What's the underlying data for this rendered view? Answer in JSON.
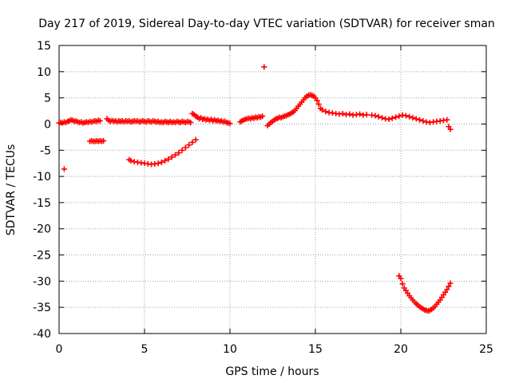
{
  "chart_data": {
    "type": "scatter",
    "title": "Day 217 of 2019, Sidereal Day-to-day VTEC variation (SDTVAR) for receiver sman",
    "xlabel": "GPS time / hours",
    "ylabel": "SDTVAR / TECUs",
    "xlim": [
      0,
      25
    ],
    "ylim": [
      -40,
      15
    ],
    "xticks": [
      0,
      5,
      10,
      15,
      20,
      25
    ],
    "yticks": [
      15,
      10,
      5,
      0,
      -5,
      -10,
      -15,
      -20,
      -25,
      -30,
      -35,
      -40
    ],
    "grid": true,
    "marker": "+",
    "color": "#ff0000",
    "series": [
      {
        "name": "SDTVAR",
        "points": [
          [
            0.0,
            0.2
          ],
          [
            0.1,
            0.3
          ],
          [
            0.2,
            0.2
          ],
          [
            0.3,
            0.4
          ],
          [
            0.4,
            0.3
          ],
          [
            0.5,
            0.5
          ],
          [
            0.6,
            0.6
          ],
          [
            0.7,
            0.8
          ],
          [
            0.8,
            0.7
          ],
          [
            0.9,
            0.5
          ],
          [
            1.0,
            0.6
          ],
          [
            1.1,
            0.4
          ],
          [
            1.2,
            0.3
          ],
          [
            1.3,
            0.4
          ],
          [
            1.4,
            0.2
          ],
          [
            1.5,
            0.3
          ],
          [
            1.6,
            0.4
          ],
          [
            1.7,
            0.3
          ],
          [
            1.8,
            0.5
          ],
          [
            1.9,
            0.4
          ],
          [
            2.0,
            0.5
          ],
          [
            2.1,
            0.6
          ],
          [
            2.2,
            0.5
          ],
          [
            2.3,
            0.7
          ],
          [
            2.4,
            0.6
          ],
          [
            0.3,
            -8.6
          ],
          [
            1.8,
            -3.3
          ],
          [
            1.9,
            -3.2
          ],
          [
            2.0,
            -3.3
          ],
          [
            2.1,
            -3.3
          ],
          [
            2.2,
            -3.2
          ],
          [
            2.3,
            -3.3
          ],
          [
            2.4,
            -3.2
          ],
          [
            2.5,
            -3.3
          ],
          [
            2.6,
            -3.2
          ],
          [
            2.8,
            1.0
          ],
          [
            2.9,
            0.7
          ],
          [
            3.0,
            0.5
          ],
          [
            3.1,
            0.7
          ],
          [
            3.2,
            0.5
          ],
          [
            3.3,
            0.6
          ],
          [
            3.4,
            0.4
          ],
          [
            3.5,
            0.6
          ],
          [
            3.6,
            0.5
          ],
          [
            3.7,
            0.6
          ],
          [
            3.8,
            0.4
          ],
          [
            3.9,
            0.6
          ],
          [
            4.0,
            0.5
          ],
          [
            4.1,
            0.6
          ],
          [
            4.2,
            0.4
          ],
          [
            4.3,
            0.5
          ],
          [
            4.4,
            0.6
          ],
          [
            4.5,
            0.5
          ],
          [
            4.6,
            0.6
          ],
          [
            4.7,
            0.4
          ],
          [
            4.8,
            0.5
          ],
          [
            4.9,
            0.6
          ],
          [
            5.0,
            0.5
          ],
          [
            5.1,
            0.4
          ],
          [
            5.2,
            0.6
          ],
          [
            5.3,
            0.5
          ],
          [
            5.4,
            0.4
          ],
          [
            5.5,
            0.6
          ],
          [
            5.6,
            0.5
          ],
          [
            5.7,
            0.4
          ],
          [
            5.8,
            0.5
          ],
          [
            5.9,
            0.3
          ],
          [
            6.0,
            0.4
          ],
          [
            6.1,
            0.3
          ],
          [
            6.2,
            0.5
          ],
          [
            6.3,
            0.4
          ],
          [
            6.4,
            0.3
          ],
          [
            6.5,
            0.5
          ],
          [
            6.6,
            0.3
          ],
          [
            6.7,
            0.4
          ],
          [
            6.8,
            0.3
          ],
          [
            6.9,
            0.5
          ],
          [
            7.0,
            0.4
          ],
          [
            7.1,
            0.3
          ],
          [
            7.2,
            0.5
          ],
          [
            7.3,
            0.4
          ],
          [
            7.4,
            0.3
          ],
          [
            7.5,
            0.5
          ],
          [
            7.6,
            0.4
          ],
          [
            7.7,
            0.3
          ],
          [
            4.1,
            -6.8
          ],
          [
            4.2,
            -7.0
          ],
          [
            4.4,
            -7.2
          ],
          [
            4.6,
            -7.3
          ],
          [
            4.8,
            -7.4
          ],
          [
            5.0,
            -7.5
          ],
          [
            5.2,
            -7.6
          ],
          [
            5.4,
            -7.7
          ],
          [
            5.6,
            -7.6
          ],
          [
            5.8,
            -7.5
          ],
          [
            6.0,
            -7.3
          ],
          [
            6.2,
            -7.0
          ],
          [
            6.4,
            -6.7
          ],
          [
            6.6,
            -6.3
          ],
          [
            6.8,
            -5.9
          ],
          [
            7.0,
            -5.5
          ],
          [
            7.2,
            -5.0
          ],
          [
            7.4,
            -4.5
          ],
          [
            7.6,
            -4.0
          ],
          [
            7.8,
            -3.5
          ],
          [
            8.0,
            -3.0
          ],
          [
            7.8,
            2.0
          ],
          [
            7.9,
            1.8
          ],
          [
            8.0,
            1.5
          ],
          [
            8.1,
            1.3
          ],
          [
            8.2,
            1.0
          ],
          [
            8.3,
            1.2
          ],
          [
            8.4,
            0.9
          ],
          [
            8.5,
            1.0
          ],
          [
            8.6,
            0.8
          ],
          [
            8.7,
            0.9
          ],
          [
            8.8,
            0.7
          ],
          [
            8.9,
            0.9
          ],
          [
            9.0,
            0.6
          ],
          [
            9.1,
            0.8
          ],
          [
            9.2,
            0.6
          ],
          [
            9.3,
            0.7
          ],
          [
            9.4,
            0.5
          ],
          [
            9.5,
            0.6
          ],
          [
            9.6,
            0.4
          ],
          [
            9.7,
            0.5
          ],
          [
            9.8,
            0.3
          ],
          [
            9.9,
            0.2
          ],
          [
            10.0,
            0.1
          ],
          [
            10.6,
            0.4
          ],
          [
            10.7,
            0.6
          ],
          [
            10.8,
            0.8
          ],
          [
            10.9,
            0.9
          ],
          [
            11.0,
            1.0
          ],
          [
            11.1,
            1.1
          ],
          [
            11.2,
            1.0
          ],
          [
            11.3,
            1.2
          ],
          [
            11.4,
            1.1
          ],
          [
            11.5,
            1.3
          ],
          [
            11.6,
            1.2
          ],
          [
            11.7,
            1.4
          ],
          [
            11.8,
            1.3
          ],
          [
            11.9,
            1.5
          ],
          [
            12.0,
            10.9
          ],
          [
            12.2,
            -0.3
          ],
          [
            12.3,
            0.0
          ],
          [
            12.4,
            0.3
          ],
          [
            12.5,
            0.5
          ],
          [
            12.6,
            0.8
          ],
          [
            12.7,
            1.0
          ],
          [
            12.8,
            1.1
          ],
          [
            12.9,
            1.3
          ],
          [
            13.0,
            1.2
          ],
          [
            13.1,
            1.4
          ],
          [
            13.2,
            1.5
          ],
          [
            13.3,
            1.6
          ],
          [
            13.4,
            1.8
          ],
          [
            13.5,
            1.9
          ],
          [
            13.6,
            2.1
          ],
          [
            13.7,
            2.3
          ],
          [
            13.8,
            2.6
          ],
          [
            13.9,
            3.0
          ],
          [
            14.0,
            3.4
          ],
          [
            14.1,
            3.8
          ],
          [
            14.2,
            4.2
          ],
          [
            14.3,
            4.6
          ],
          [
            14.4,
            5.0
          ],
          [
            14.5,
            5.3
          ],
          [
            14.6,
            5.5
          ],
          [
            14.7,
            5.6
          ],
          [
            14.8,
            5.5
          ],
          [
            14.9,
            5.3
          ],
          [
            15.0,
            5.0
          ],
          [
            15.1,
            4.5
          ],
          [
            15.2,
            3.8
          ],
          [
            15.3,
            3.0
          ],
          [
            15.4,
            2.7
          ],
          [
            15.6,
            2.4
          ],
          [
            15.8,
            2.2
          ],
          [
            16.0,
            2.1
          ],
          [
            16.2,
            2.0
          ],
          [
            16.4,
            1.9
          ],
          [
            16.6,
            2.0
          ],
          [
            16.8,
            1.8
          ],
          [
            17.0,
            1.9
          ],
          [
            17.2,
            1.7
          ],
          [
            17.4,
            1.8
          ],
          [
            17.6,
            1.9
          ],
          [
            17.8,
            1.7
          ],
          [
            18.0,
            1.8
          ],
          [
            18.3,
            1.7
          ],
          [
            18.5,
            1.6
          ],
          [
            18.7,
            1.4
          ],
          [
            18.9,
            1.2
          ],
          [
            19.1,
            1.0
          ],
          [
            19.3,
            0.9
          ],
          [
            19.5,
            1.1
          ],
          [
            19.7,
            1.3
          ],
          [
            19.9,
            1.5
          ],
          [
            20.1,
            1.7
          ],
          [
            20.3,
            1.6
          ],
          [
            20.5,
            1.4
          ],
          [
            20.7,
            1.2
          ],
          [
            20.9,
            1.0
          ],
          [
            21.1,
            0.8
          ],
          [
            21.3,
            0.6
          ],
          [
            21.5,
            0.4
          ],
          [
            21.7,
            0.3
          ],
          [
            21.9,
            0.4
          ],
          [
            22.1,
            0.5
          ],
          [
            22.3,
            0.6
          ],
          [
            22.5,
            0.7
          ],
          [
            22.7,
            0.8
          ],
          [
            22.8,
            -0.5
          ],
          [
            22.9,
            -1.0
          ],
          [
            19.9,
            -29.0
          ],
          [
            20.0,
            -29.5
          ],
          [
            20.1,
            -30.5
          ],
          [
            20.2,
            -31.3
          ],
          [
            20.3,
            -31.8
          ],
          [
            20.4,
            -32.3
          ],
          [
            20.5,
            -32.8
          ],
          [
            20.6,
            -33.2
          ],
          [
            20.7,
            -33.6
          ],
          [
            20.8,
            -34.0
          ],
          [
            20.9,
            -34.3
          ],
          [
            21.0,
            -34.6
          ],
          [
            21.1,
            -34.9
          ],
          [
            21.2,
            -35.1
          ],
          [
            21.3,
            -35.3
          ],
          [
            21.4,
            -35.5
          ],
          [
            21.5,
            -35.6
          ],
          [
            21.6,
            -35.7
          ],
          [
            21.7,
            -35.6
          ],
          [
            21.8,
            -35.4
          ],
          [
            21.9,
            -35.1
          ],
          [
            22.0,
            -34.8
          ],
          [
            22.1,
            -34.4
          ],
          [
            22.2,
            -34.0
          ],
          [
            22.3,
            -33.6
          ],
          [
            22.4,
            -33.1
          ],
          [
            22.5,
            -32.6
          ],
          [
            22.6,
            -32.1
          ],
          [
            22.7,
            -31.6
          ],
          [
            22.8,
            -31.0
          ],
          [
            22.9,
            -30.4
          ]
        ]
      }
    ]
  }
}
